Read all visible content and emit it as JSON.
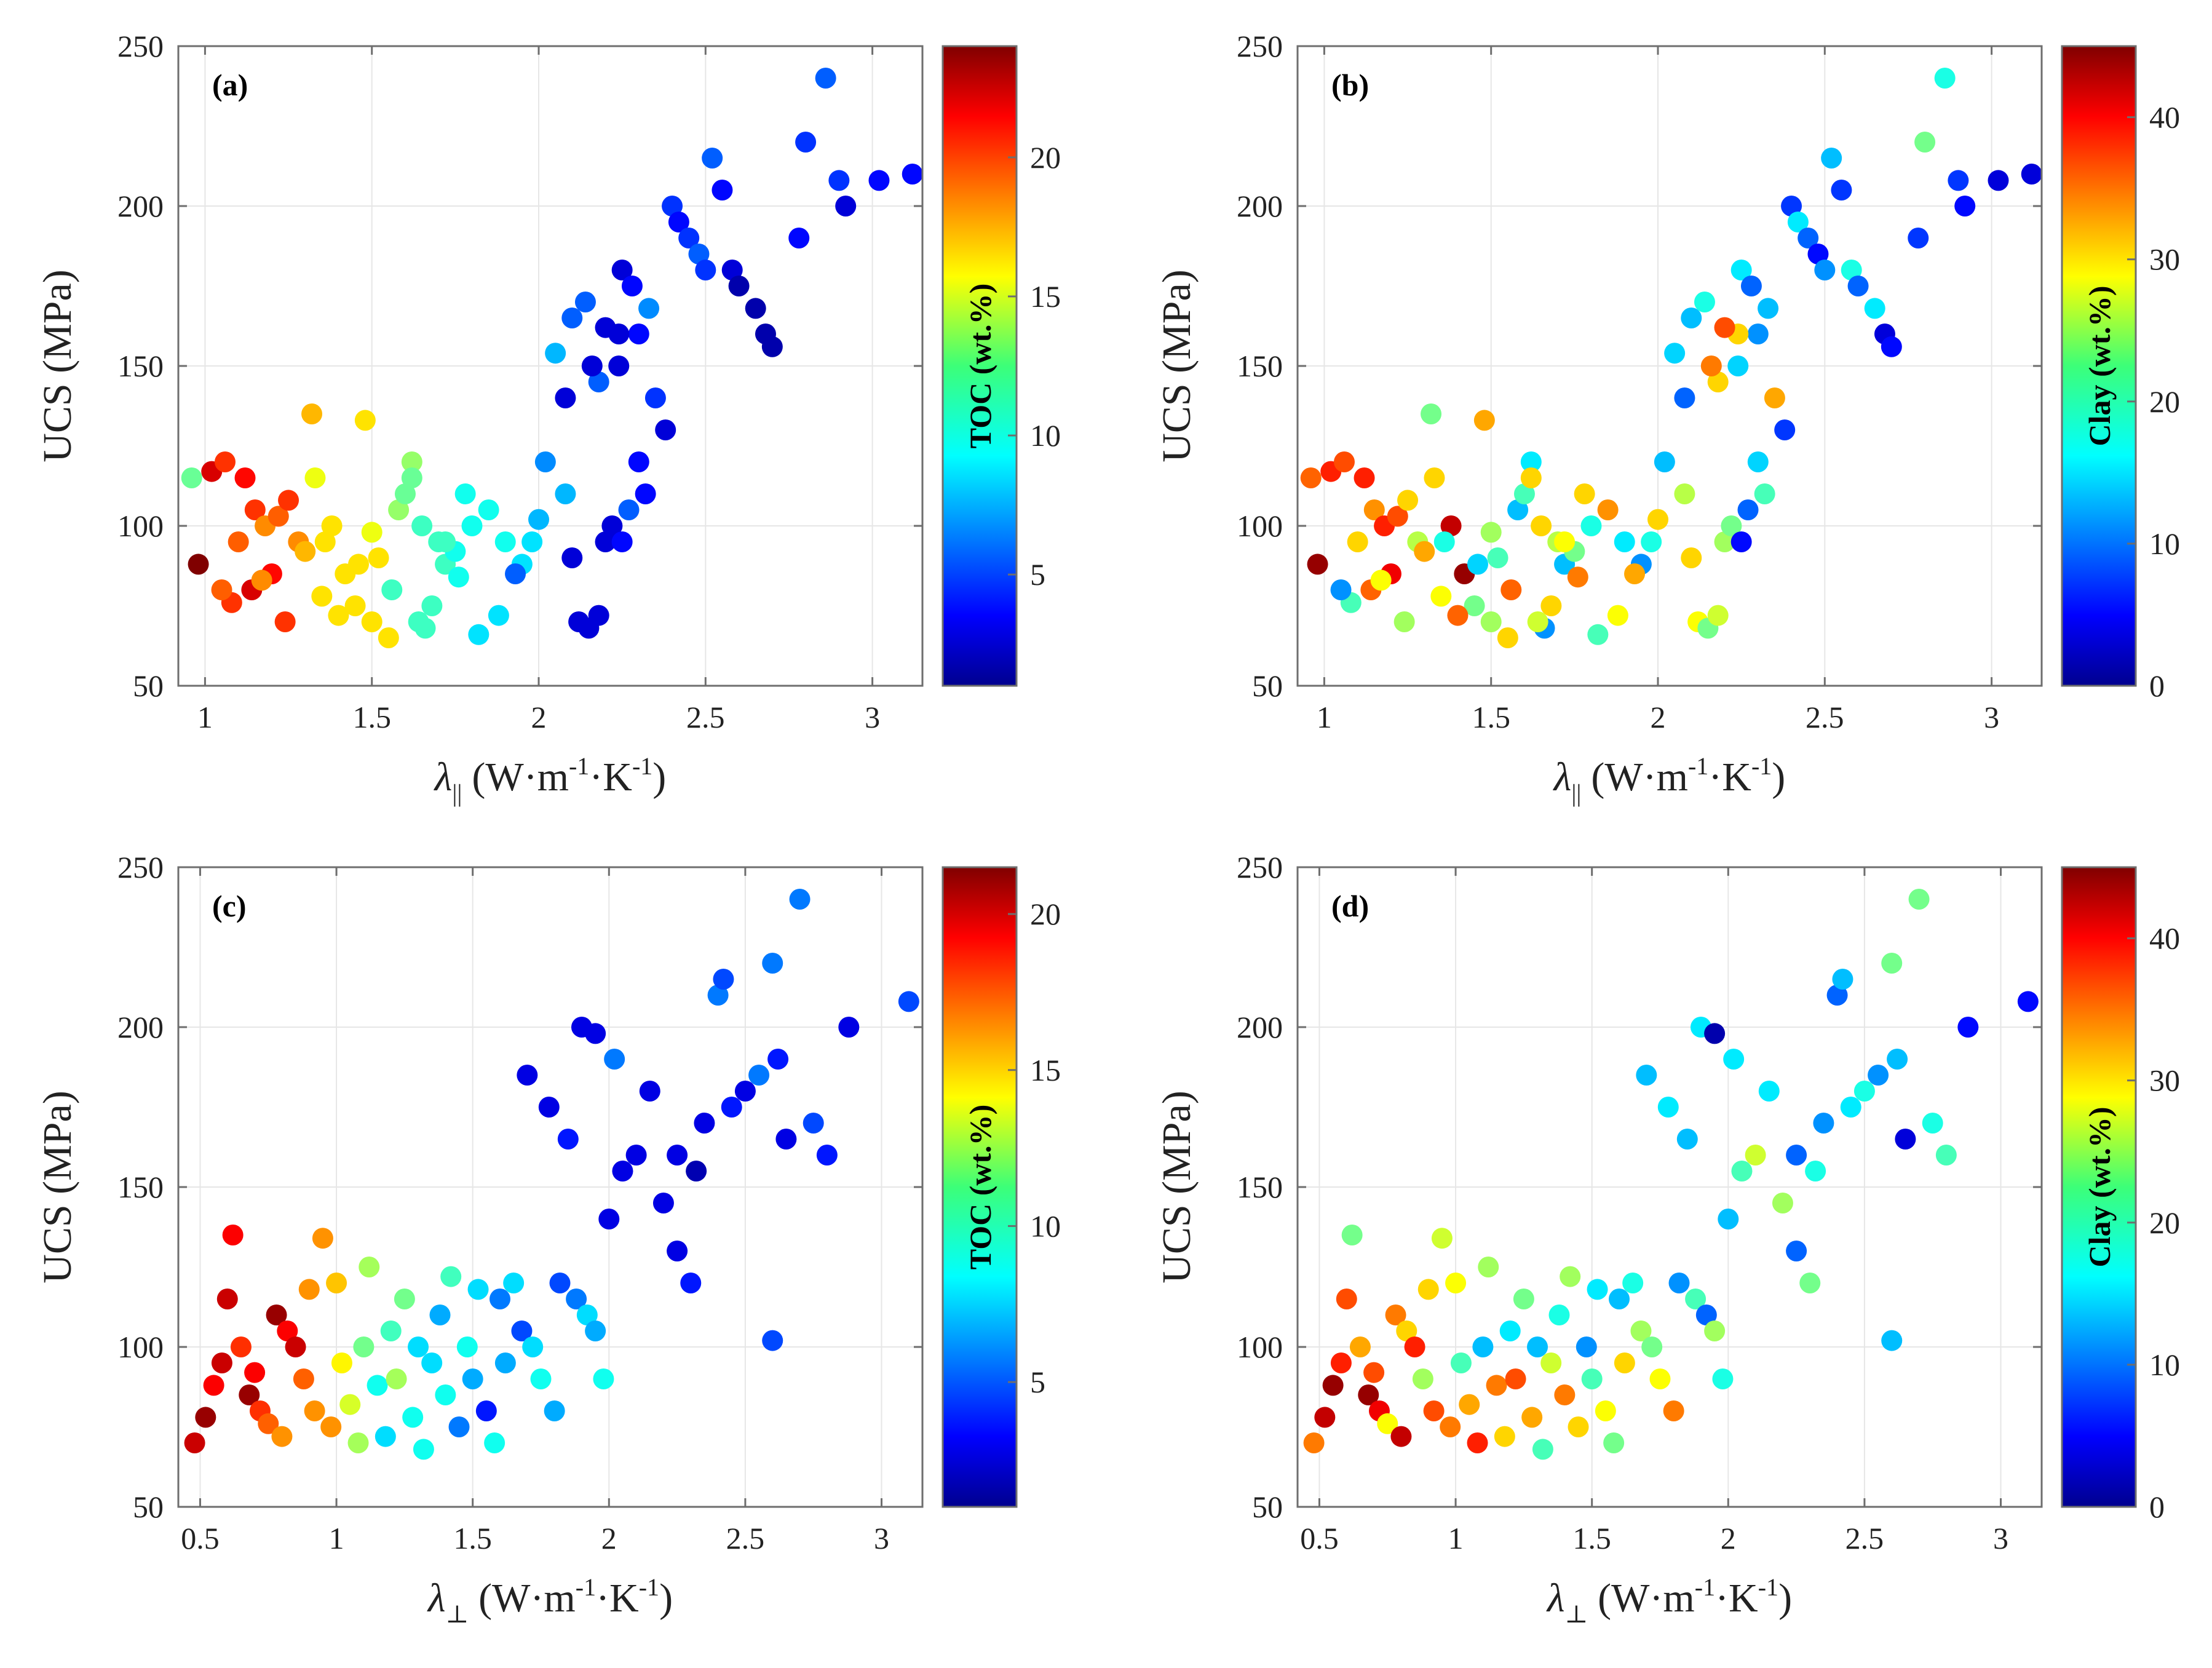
{
  "chart_data": [
    {
      "type": "scatter",
      "panel_label": "(a)",
      "xlabel_symbol": "λ",
      "xlabel_subscript": "||",
      "xlabel_units": [
        "(W·m",
        "-1",
        "·K",
        "-1",
        ")"
      ],
      "ylabel": "UCS (MPa)",
      "xlim": [
        0.92,
        3.15
      ],
      "ylim": [
        50,
        250
      ],
      "xticks": [
        1,
        1.5,
        2,
        2.5,
        3
      ],
      "xtick_labels": [
        "1",
        "1.5",
        "2",
        "2.5",
        "3"
      ],
      "yticks": [
        50,
        100,
        150,
        200,
        250
      ],
      "ytick_labels": [
        "50",
        "100",
        "150",
        "200",
        "250"
      ],
      "grid": true,
      "colorbar": {
        "label": "TOC (wt.%)",
        "range": [
          1,
          24
        ],
        "ticks": [
          5,
          10,
          15,
          20
        ],
        "tick_labels": [
          "5",
          "10",
          "15",
          "20"
        ],
        "colormap": "jet"
      },
      "x": [
        0.96,
        1.02,
        1.06,
        0.98,
        1.12,
        1.15,
        1.1,
        1.18,
        1.22,
        1.25,
        1.28,
        1.3,
        1.2,
        1.14,
        1.08,
        1.05,
        1.17,
        1.24,
        1.32,
        1.33,
        1.48,
        1.38,
        1.42,
        1.36,
        1.45,
        1.5,
        1.55,
        1.4,
        1.35,
        1.46,
        1.52,
        1.58,
        1.62,
        1.6,
        1.65,
        1.7,
        1.56,
        1.66,
        1.72,
        1.75,
        1.8,
        1.78,
        1.85,
        1.9,
        1.95,
        1.88,
        1.82,
        1.76,
        1.68,
        1.64,
        2.0,
        2.02,
        2.05,
        2.08,
        1.98,
        1.93,
        2.1,
        2.12,
        2.15,
        2.18,
        2.2,
        2.22,
        2.25,
        2.28,
        2.3,
        2.1,
        2.14,
        2.18,
        2.24,
        2.3,
        2.35,
        2.38,
        2.32,
        2.27,
        2.25,
        2.33,
        2.4,
        2.42,
        2.45,
        2.48,
        2.5,
        2.52,
        2.55,
        2.58,
        2.6,
        2.65,
        2.68,
        2.7,
        2.78,
        2.8,
        2.86,
        2.9,
        2.92,
        3.02,
        3.12,
        2.24,
        2.2,
        2.16,
        2.08,
        1.5,
        1.62,
        1.72
      ],
      "y": [
        115,
        117,
        120,
        88,
        115,
        105,
        95,
        100,
        103,
        108,
        95,
        92,
        85,
        80,
        76,
        80,
        83,
        70,
        135,
        115,
        133,
        100,
        85,
        95,
        75,
        70,
        65,
        72,
        78,
        88,
        90,
        105,
        120,
        110,
        100,
        95,
        80,
        68,
        88,
        92,
        100,
        110,
        105,
        95,
        88,
        72,
        66,
        84,
        75,
        70,
        102,
        120,
        154,
        110,
        95,
        85,
        90,
        70,
        68,
        72,
        95,
        100,
        180,
        175,
        120,
        165,
        170,
        145,
        150,
        160,
        140,
        130,
        110,
        105,
        95,
        168,
        200,
        195,
        190,
        185,
        180,
        215,
        205,
        180,
        175,
        168,
        160,
        156,
        190,
        220,
        240,
        208,
        200,
        208,
        210,
        160,
        162,
        150,
        140,
        98,
        115,
        95
      ],
      "c": [
        12,
        22,
        20,
        24,
        21,
        20,
        19,
        18,
        19,
        20,
        18,
        17,
        21,
        22,
        20,
        19,
        18,
        20,
        17,
        15,
        16,
        16,
        16,
        16,
        16,
        16,
        16,
        16,
        16,
        16,
        16,
        13,
        13,
        12,
        11,
        11,
        11,
        11,
        11,
        10,
        10,
        10,
        10,
        10,
        9,
        9,
        9,
        10,
        11,
        11,
        8,
        7,
        8,
        8,
        9,
        6,
        3,
        3,
        3,
        3,
        3,
        3,
        3,
        4,
        4,
        6,
        6,
        6,
        3,
        4,
        5,
        3,
        4,
        6,
        4,
        7,
        5,
        4,
        5,
        6,
        5,
        6,
        4,
        3,
        2,
        2,
        2,
        2,
        4,
        5,
        6,
        5,
        3,
        4,
        4,
        3,
        3,
        3,
        3,
        15,
        12,
        11
      ]
    },
    {
      "type": "scatter",
      "panel_label": "(b)",
      "xlabel_symbol": "λ",
      "xlabel_subscript": "||",
      "xlabel_units": [
        "(W·m",
        "-1",
        "·K",
        "-1",
        ")"
      ],
      "ylabel": "UCS (MPa)",
      "xlim": [
        0.92,
        3.15
      ],
      "ylim": [
        50,
        250
      ],
      "xticks": [
        1,
        1.5,
        2,
        2.5,
        3
      ],
      "xtick_labels": [
        "1",
        "1.5",
        "2",
        "2.5",
        "3"
      ],
      "yticks": [
        50,
        100,
        150,
        200,
        250
      ],
      "ytick_labels": [
        "50",
        "100",
        "150",
        "200",
        "250"
      ],
      "grid": true,
      "colorbar": {
        "label": "Clay (wt.%)",
        "range": [
          0,
          45
        ],
        "ticks": [
          0,
          10,
          20,
          30,
          40
        ],
        "tick_labels": [
          "0",
          "10",
          "20",
          "30",
          "40"
        ],
        "colormap": "jet"
      },
      "x": [
        0.96,
        1.02,
        1.06,
        0.98,
        1.12,
        1.15,
        1.1,
        1.18,
        1.22,
        1.25,
        1.28,
        1.3,
        1.2,
        1.14,
        1.08,
        1.05,
        1.17,
        1.24,
        1.32,
        1.33,
        1.48,
        1.38,
        1.42,
        1.36,
        1.45,
        1.5,
        1.55,
        1.4,
        1.35,
        1.46,
        1.52,
        1.58,
        1.62,
        1.6,
        1.65,
        1.7,
        1.56,
        1.66,
        1.72,
        1.75,
        1.8,
        1.78,
        1.85,
        1.9,
        1.95,
        1.88,
        1.82,
        1.76,
        1.68,
        1.64,
        2.0,
        2.02,
        2.05,
        2.08,
        1.98,
        1.93,
        2.1,
        2.12,
        2.15,
        2.18,
        2.2,
        2.22,
        2.25,
        2.28,
        2.3,
        2.1,
        2.14,
        2.18,
        2.24,
        2.3,
        2.35,
        2.38,
        2.32,
        2.27,
        2.25,
        2.33,
        2.4,
        2.42,
        2.45,
        2.48,
        2.5,
        2.52,
        2.55,
        2.58,
        2.6,
        2.65,
        2.68,
        2.7,
        2.78,
        2.8,
        2.86,
        2.9,
        2.92,
        3.02,
        3.12,
        2.24,
        2.2,
        2.16,
        2.08,
        1.5,
        1.62,
        1.72
      ],
      "y": [
        115,
        117,
        120,
        88,
        115,
        105,
        95,
        100,
        103,
        108,
        95,
        92,
        85,
        80,
        76,
        80,
        83,
        70,
        135,
        115,
        133,
        100,
        85,
        95,
        75,
        70,
        65,
        72,
        78,
        88,
        90,
        105,
        120,
        110,
        100,
        95,
        80,
        68,
        88,
        92,
        100,
        110,
        105,
        95,
        88,
        72,
        66,
        84,
        75,
        70,
        102,
        120,
        154,
        110,
        95,
        85,
        90,
        70,
        68,
        72,
        95,
        100,
        180,
        175,
        120,
        165,
        170,
        145,
        150,
        160,
        140,
        130,
        110,
        105,
        95,
        168,
        200,
        195,
        190,
        185,
        180,
        215,
        205,
        180,
        175,
        168,
        160,
        156,
        190,
        220,
        240,
        208,
        200,
        208,
        210,
        160,
        162,
        150,
        140,
        98,
        115,
        95
      ],
      "c": [
        35,
        38,
        36,
        44,
        38,
        33,
        30,
        38,
        36,
        30,
        25,
        32,
        40,
        35,
        20,
        12,
        28,
        24,
        22,
        30,
        32,
        42,
        44,
        18,
        22,
        24,
        30,
        35,
        28,
        15,
        20,
        14,
        16,
        20,
        30,
        25,
        35,
        12,
        14,
        22,
        18,
        30,
        33,
        16,
        12,
        28,
        20,
        34,
        30,
        26,
        30,
        14,
        15,
        25,
        18,
        32,
        30,
        28,
        22,
        26,
        24,
        22,
        16,
        10,
        15,
        14,
        18,
        30,
        15,
        12,
        32,
        8,
        20,
        10,
        6,
        14,
        8,
        16,
        10,
        6,
        12,
        14,
        8,
        18,
        10,
        16,
        4,
        6,
        8,
        22,
        18,
        8,
        6,
        4,
        4,
        30,
        36,
        34,
        10,
        24,
        30,
        28
      ]
    },
    {
      "type": "scatter",
      "panel_label": "(c)",
      "xlabel_symbol": "λ",
      "xlabel_subscript": "⊥",
      "xlabel_units": [
        "(W·m",
        "-1",
        "·K",
        "-1",
        ")"
      ],
      "ylabel": "UCS (MPa)",
      "xlim": [
        0.42,
        3.15
      ],
      "ylim": [
        50,
        250
      ],
      "xticks": [
        0.5,
        1,
        1.5,
        2,
        2.5,
        3
      ],
      "xtick_labels": [
        "0.5",
        "1",
        "1.5",
        "2",
        "2.5",
        "3"
      ],
      "yticks": [
        50,
        100,
        150,
        200,
        250
      ],
      "ytick_labels": [
        "50",
        "100",
        "150",
        "200",
        "250"
      ],
      "grid": true,
      "colorbar": {
        "label": "TOC (wt.%)",
        "range": [
          1,
          21.5
        ],
        "ticks": [
          5,
          10,
          15,
          20
        ],
        "tick_labels": [
          "5",
          "10",
          "15",
          "20"
        ],
        "colormap": "jet"
      },
      "x": [
        0.48,
        0.52,
        0.55,
        0.58,
        0.6,
        0.62,
        0.65,
        0.68,
        0.7,
        0.72,
        0.75,
        0.78,
        0.8,
        0.82,
        0.85,
        0.88,
        0.9,
        0.92,
        0.95,
        0.98,
        1.0,
        1.02,
        1.05,
        1.08,
        1.1,
        1.12,
        1.15,
        1.18,
        1.2,
        1.22,
        1.25,
        1.28,
        1.3,
        1.32,
        1.35,
        1.38,
        1.4,
        1.42,
        1.45,
        1.48,
        1.5,
        1.52,
        1.55,
        1.58,
        1.6,
        1.62,
        1.65,
        1.68,
        1.7,
        1.72,
        1.75,
        1.78,
        1.8,
        1.82,
        1.85,
        1.88,
        1.9,
        1.92,
        1.95,
        1.98,
        2.0,
        2.05,
        2.1,
        2.15,
        2.2,
        2.25,
        2.3,
        2.35,
        2.4,
        2.42,
        2.45,
        2.5,
        2.55,
        2.6,
        2.62,
        2.65,
        2.7,
        2.75,
        2.8,
        2.88,
        3.1,
        1.95,
        2.02,
        2.25,
        2.32,
        2.6
      ],
      "y": [
        70,
        78,
        88,
        95,
        115,
        135,
        100,
        85,
        92,
        80,
        76,
        110,
        72,
        105,
        100,
        90,
        118,
        80,
        134,
        75,
        120,
        95,
        82,
        70,
        100,
        125,
        88,
        72,
        105,
        90,
        115,
        78,
        100,
        68,
        95,
        110,
        85,
        122,
        75,
        100,
        90,
        118,
        80,
        70,
        115,
        95,
        120,
        105,
        185,
        100,
        90,
        175,
        80,
        120,
        165,
        115,
        200,
        110,
        105,
        90,
        140,
        155,
        160,
        180,
        145,
        130,
        120,
        170,
        210,
        215,
        175,
        180,
        185,
        220,
        190,
        165,
        240,
        170,
        160,
        200,
        208,
        198,
        190,
        160,
        155,
        102
      ],
      "c": [
        20,
        21,
        19,
        20,
        20,
        19,
        18,
        21,
        19,
        18,
        17,
        21,
        16,
        19,
        20,
        17,
        16,
        16,
        16,
        16,
        15,
        14,
        13,
        12,
        11,
        12,
        9,
        8,
        10,
        12,
        11,
        9,
        8,
        9,
        8,
        7,
        9,
        10,
        6,
        9,
        7,
        8,
        4,
        9,
        6,
        7,
        8,
        5,
        3,
        8,
        9,
        3,
        7,
        5,
        4,
        6,
        3,
        8,
        7,
        9,
        3,
        3,
        3,
        3,
        3,
        3,
        4,
        3,
        6,
        5,
        4,
        3,
        6,
        6,
        4,
        3,
        6,
        5,
        4,
        3,
        5,
        3,
        6,
        3,
        2,
        5
      ]
    },
    {
      "type": "scatter",
      "panel_label": "(d)",
      "xlabel_symbol": "λ",
      "xlabel_subscript": "⊥",
      "xlabel_units": [
        "(W·m",
        "-1",
        "·K",
        "-1",
        ")"
      ],
      "ylabel": "UCS (MPa)",
      "xlim": [
        0.42,
        3.15
      ],
      "ylim": [
        50,
        250
      ],
      "xticks": [
        0.5,
        1,
        1.5,
        2,
        2.5,
        3
      ],
      "xtick_labels": [
        "0.5",
        "1",
        "1.5",
        "2",
        "2.5",
        "3"
      ],
      "yticks": [
        50,
        100,
        150,
        200,
        250
      ],
      "ytick_labels": [
        "50",
        "100",
        "150",
        "200",
        "250"
      ],
      "grid": true,
      "colorbar": {
        "label": "Clay (wt.%)",
        "range": [
          0,
          45
        ],
        "ticks": [
          0,
          10,
          20,
          30,
          40
        ],
        "tick_labels": [
          "0",
          "10",
          "20",
          "30",
          "40"
        ],
        "colormap": "jet"
      },
      "x": [
        0.48,
        0.52,
        0.55,
        0.58,
        0.6,
        0.62,
        0.65,
        0.68,
        0.7,
        0.72,
        0.75,
        0.78,
        0.8,
        0.82,
        0.85,
        0.88,
        0.9,
        0.92,
        0.95,
        0.98,
        1.0,
        1.02,
        1.05,
        1.08,
        1.1,
        1.12,
        1.15,
        1.18,
        1.2,
        1.22,
        1.25,
        1.28,
        1.3,
        1.32,
        1.35,
        1.38,
        1.4,
        1.42,
        1.45,
        1.48,
        1.5,
        1.52,
        1.55,
        1.58,
        1.6,
        1.62,
        1.65,
        1.68,
        1.7,
        1.72,
        1.75,
        1.78,
        1.8,
        1.82,
        1.85,
        1.88,
        1.9,
        1.92,
        1.95,
        1.98,
        2.0,
        2.05,
        2.1,
        2.15,
        2.2,
        2.25,
        2.3,
        2.35,
        2.4,
        2.42,
        2.45,
        2.5,
        2.55,
        2.6,
        2.62,
        2.65,
        2.7,
        2.75,
        2.8,
        2.88,
        3.1,
        1.95,
        2.02,
        2.25,
        2.32,
        2.6
      ],
      "y": [
        70,
        78,
        88,
        95,
        115,
        135,
        100,
        85,
        92,
        80,
        76,
        110,
        72,
        105,
        100,
        90,
        118,
        80,
        134,
        75,
        120,
        95,
        82,
        70,
        100,
        125,
        88,
        72,
        105,
        90,
        115,
        78,
        100,
        68,
        95,
        110,
        85,
        122,
        75,
        100,
        90,
        118,
        80,
        70,
        115,
        95,
        120,
        105,
        185,
        100,
        90,
        175,
        80,
        120,
        165,
        115,
        200,
        110,
        105,
        90,
        140,
        155,
        160,
        180,
        145,
        130,
        120,
        170,
        210,
        215,
        175,
        180,
        185,
        220,
        190,
        165,
        240,
        170,
        160,
        200,
        208,
        198,
        190,
        160,
        155,
        102
      ],
      "c": [
        34,
        42,
        44,
        38,
        36,
        22,
        32,
        44,
        36,
        40,
        28,
        34,
        42,
        30,
        38,
        24,
        30,
        36,
        26,
        34,
        28,
        20,
        32,
        38,
        14,
        24,
        34,
        30,
        16,
        36,
        22,
        32,
        14,
        20,
        26,
        18,
        34,
        24,
        30,
        12,
        20,
        16,
        28,
        22,
        14,
        30,
        18,
        24,
        14,
        22,
        28,
        16,
        34,
        12,
        14,
        20,
        16,
        10,
        24,
        18,
        14,
        20,
        26,
        16,
        24,
        10,
        22,
        12,
        10,
        14,
        16,
        18,
        12,
        22,
        14,
        4,
        22,
        18,
        20,
        6,
        6,
        2,
        16,
        10,
        18,
        14
      ]
    }
  ]
}
